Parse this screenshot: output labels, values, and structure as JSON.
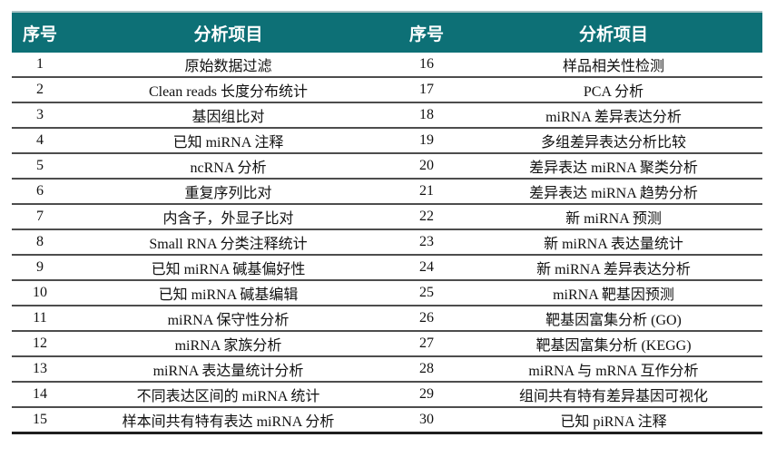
{
  "table": {
    "headers": {
      "no_left": "序号",
      "item_left": "分析项目",
      "no_right": "序号",
      "item_right": "分析项目"
    },
    "rows": [
      {
        "no_left": "1",
        "item_left": "原始数据过滤",
        "no_right": "16",
        "item_right": "样品相关性检测"
      },
      {
        "no_left": "2",
        "item_left": "Clean reads 长度分布统计",
        "no_right": "17",
        "item_right": "PCA 分析"
      },
      {
        "no_left": "3",
        "item_left": "基因组比对",
        "no_right": "18",
        "item_right": "miRNA 差异表达分析"
      },
      {
        "no_left": "4",
        "item_left": "已知 miRNA 注释",
        "no_right": "19",
        "item_right": "多组差异表达分析比较"
      },
      {
        "no_left": "5",
        "item_left": "ncRNA 分析",
        "no_right": "20",
        "item_right": "差异表达 miRNA 聚类分析"
      },
      {
        "no_left": "6",
        "item_left": "重复序列比对",
        "no_right": "21",
        "item_right": "差异表达 miRNA 趋势分析"
      },
      {
        "no_left": "7",
        "item_left": "内含子，外显子比对",
        "no_right": "22",
        "item_right": "新 miRNA 预测"
      },
      {
        "no_left": "8",
        "item_left": "Small RNA 分类注释统计",
        "no_right": "23",
        "item_right": "新 miRNA 表达量统计"
      },
      {
        "no_left": "9",
        "item_left": "已知 miRNA 碱基偏好性",
        "no_right": "24",
        "item_right": "新 miRNA 差异表达分析"
      },
      {
        "no_left": "10",
        "item_left": "已知 miRNA 碱基编辑",
        "no_right": "25",
        "item_right": "miRNA 靶基因预测"
      },
      {
        "no_left": "11",
        "item_left": "miRNA 保守性分析",
        "no_right": "26",
        "item_right": "靶基因富集分析 (GO)"
      },
      {
        "no_left": "12",
        "item_left": "miRNA 家族分析",
        "no_right": "27",
        "item_right": "靶基因富集分析 (KEGG)"
      },
      {
        "no_left": "13",
        "item_left": "miRNA 表达量统计分析",
        "no_right": "28",
        "item_right": "miRNA 与 mRNA 互作分析"
      },
      {
        "no_left": "14",
        "item_left": "不同表达区间的 miRNA 统计",
        "no_right": "29",
        "item_right": "组间共有特有差异基因可视化"
      },
      {
        "no_left": "15",
        "item_left": "样本间共有特有表达 miRNA 分析",
        "no_right": "30",
        "item_right": "已知 piRNA 注释"
      }
    ]
  },
  "colors": {
    "header_bg": "#0d7076",
    "header_text": "#ffffff",
    "row_line": "#4d4d4d",
    "bottom_line": "#1f1f1f",
    "body_text": "#111111"
  }
}
